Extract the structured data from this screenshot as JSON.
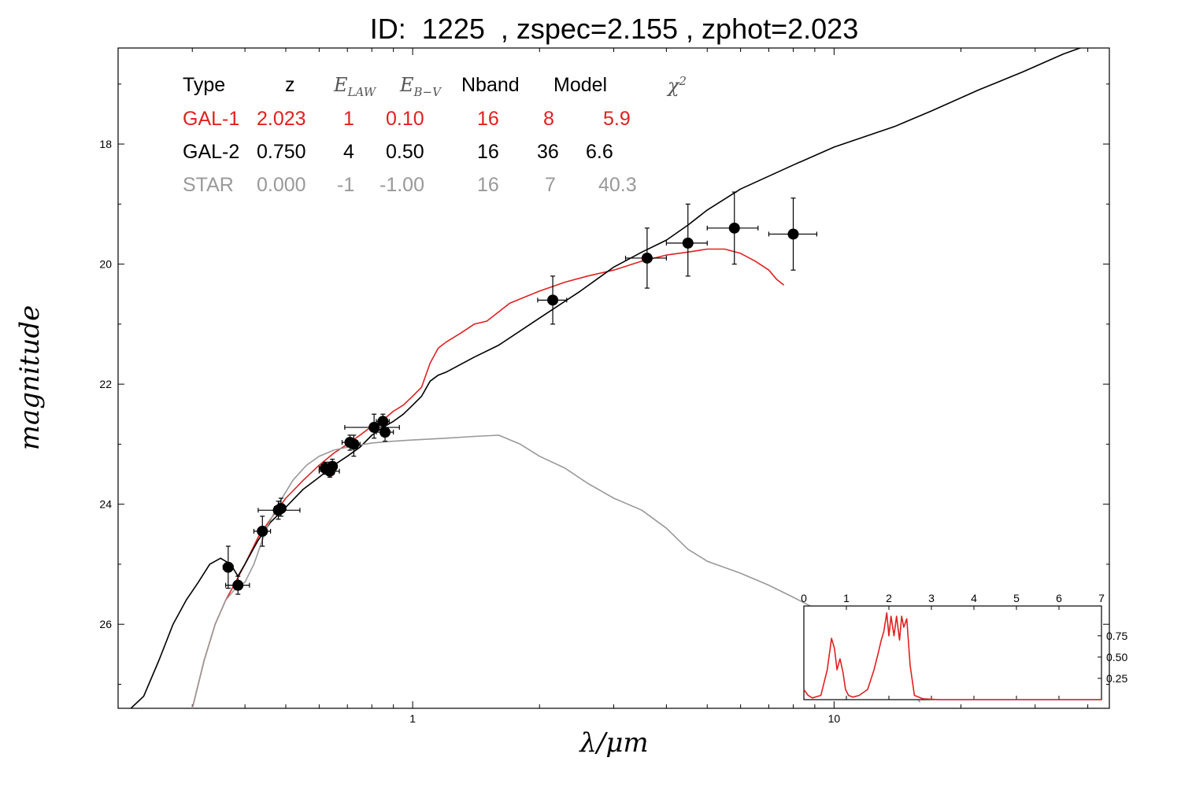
{
  "title": "ID:  1225  , zspec=2.155 , zphot=2.023",
  "chart_data": {
    "type": "scatter",
    "xlabel": "λ/μm",
    "ylabel": "magnitude",
    "x_scale": "log",
    "xlim": [
      0.2,
      45
    ],
    "ylim": [
      27.4,
      16.4
    ],
    "y_inverted": true,
    "x_ticks": [
      "1",
      "10"
    ],
    "y_ticks": [
      "18",
      "20",
      "22",
      "24",
      "26"
    ],
    "legend": {
      "headers": {
        "type": "Type",
        "z": "z",
        "elaw_base": "E",
        "elaw_sub": "LAW",
        "ebv_base": "E",
        "ebv_sub": "B−V",
        "nband": "Nband",
        "model": "Model",
        "chi_base": "χ",
        "chi_sup": "2"
      },
      "rows": [
        {
          "type": "GAL-1",
          "z": "2.023",
          "elaw": "1",
          "ebv": "0.10",
          "nband": "16",
          "model": "8",
          "chi2": "5.9",
          "color": "#e02020"
        },
        {
          "type": "GAL-2",
          "z": "0.750",
          "elaw": "4",
          "ebv": "0.50",
          "nband": "16",
          "model": "36",
          "chi2": "6.6",
          "color": "#000000"
        },
        {
          "type": "STAR",
          "z": "0.000",
          "elaw": "-1",
          "ebv": "-1.00",
          "nband": "16",
          "model": "7",
          "chi2": "40.3",
          "color": "#999999"
        }
      ]
    },
    "points": [
      {
        "x": 0.365,
        "y": 25.05,
        "xerr": [
          0.355,
          0.375
        ],
        "yerr": [
          24.7,
          25.4
        ]
      },
      {
        "x": 0.385,
        "y": 25.35,
        "xerr": [
          0.36,
          0.41
        ],
        "yerr": [
          25.2,
          25.5
        ]
      },
      {
        "x": 0.44,
        "y": 24.45,
        "xerr": [
          0.42,
          0.46
        ],
        "yerr": [
          24.2,
          24.7
        ]
      },
      {
        "x": 0.48,
        "y": 24.1,
        "xerr": [
          0.43,
          0.54
        ],
        "yerr": [
          23.95,
          24.25
        ]
      },
      {
        "x": 0.487,
        "y": 24.07,
        "xerr": [
          0.47,
          0.5
        ],
        "yerr": [
          23.9,
          24.2
        ]
      },
      {
        "x": 0.62,
        "y": 23.4,
        "xerr": [
          0.6,
          0.64
        ],
        "yerr": [
          23.3,
          23.5
        ]
      },
      {
        "x": 0.636,
        "y": 23.45,
        "xerr": [
          0.6,
          0.67
        ],
        "yerr": [
          23.3,
          23.55
        ]
      },
      {
        "x": 0.645,
        "y": 23.37,
        "xerr": [
          0.63,
          0.66
        ],
        "yerr": [
          23.25,
          23.5
        ]
      },
      {
        "x": 0.71,
        "y": 22.97,
        "xerr": [
          0.68,
          0.74
        ],
        "yerr": [
          22.85,
          23.1
        ]
      },
      {
        "x": 0.725,
        "y": 23.0,
        "xerr": [
          0.7,
          0.75
        ],
        "yerr": [
          22.85,
          23.2
        ]
      },
      {
        "x": 0.81,
        "y": 22.72,
        "xerr": [
          0.69,
          0.93
        ],
        "yerr": [
          22.5,
          22.9
        ]
      },
      {
        "x": 0.85,
        "y": 22.62,
        "xerr": [
          0.82,
          0.88
        ],
        "yerr": [
          22.5,
          22.75
        ]
      },
      {
        "x": 0.86,
        "y": 22.8,
        "xerr": [
          0.82,
          0.9
        ],
        "yerr": [
          22.65,
          22.95
        ]
      },
      {
        "x": 2.15,
        "y": 20.6,
        "xerr": [
          1.98,
          2.32
        ],
        "yerr": [
          20.2,
          21.0
        ]
      },
      {
        "x": 3.6,
        "y": 19.9,
        "xerr": [
          3.2,
          4.0
        ],
        "yerr": [
          19.4,
          20.4
        ]
      },
      {
        "x": 4.5,
        "y": 19.65,
        "xerr": [
          4.0,
          5.0
        ],
        "yerr": [
          19.0,
          20.2
        ]
      },
      {
        "x": 5.8,
        "y": 19.4,
        "xerr": [
          5.0,
          6.6
        ],
        "yerr": [
          18.8,
          20.0
        ]
      },
      {
        "x": 8.0,
        "y": 19.5,
        "xerr": [
          7.0,
          9.1
        ],
        "yerr": [
          18.9,
          20.1
        ]
      }
    ],
    "series": [
      {
        "color": "#e02020",
        "x": [
          0.3,
          0.32,
          0.34,
          0.36,
          0.38,
          0.4,
          0.43,
          0.46,
          0.5,
          0.55,
          0.6,
          0.65,
          0.7,
          0.75,
          0.8,
          0.85,
          0.9,
          0.95,
          1.0,
          1.05,
          1.1,
          1.15,
          1.2,
          1.3,
          1.4,
          1.5,
          1.7,
          2.0,
          2.3,
          2.6,
          3.0,
          3.5,
          4.0,
          4.5,
          5.0,
          5.5,
          6.0,
          6.5,
          7.0,
          7.3,
          7.6
        ],
        "y": [
          27.4,
          26.6,
          26.0,
          25.6,
          25.3,
          25.0,
          24.55,
          24.25,
          23.9,
          23.6,
          23.35,
          23.15,
          23.0,
          22.85,
          22.7,
          22.6,
          22.45,
          22.35,
          22.2,
          22.05,
          21.65,
          21.4,
          21.3,
          21.15,
          21.0,
          20.95,
          20.65,
          20.45,
          20.3,
          20.2,
          20.1,
          19.95,
          19.85,
          19.8,
          19.75,
          19.75,
          19.82,
          19.95,
          20.1,
          20.25,
          20.35
        ]
      },
      {
        "color": "#000000",
        "x": [
          0.2,
          0.23,
          0.25,
          0.27,
          0.29,
          0.31,
          0.33,
          0.35,
          0.37,
          0.385,
          0.4,
          0.43,
          0.46,
          0.5,
          0.55,
          0.6,
          0.65,
          0.7,
          0.75,
          0.8,
          0.85,
          0.9,
          0.95,
          1.0,
          1.05,
          1.1,
          1.15,
          1.2,
          1.4,
          1.6,
          2.0,
          2.5,
          3.0,
          3.5,
          4.0,
          4.5,
          5.0,
          6.0,
          8.0,
          10.0,
          14.0,
          17.0,
          22.0,
          28.0,
          35.0,
          42.0
        ],
        "y": [
          27.6,
          27.2,
          26.6,
          26.0,
          25.6,
          25.3,
          25.0,
          24.9,
          25.0,
          25.2,
          25.0,
          24.6,
          24.3,
          24.05,
          23.75,
          23.55,
          23.35,
          23.2,
          23.05,
          22.85,
          22.72,
          22.62,
          22.5,
          22.35,
          22.2,
          21.95,
          21.85,
          21.8,
          21.55,
          21.35,
          20.9,
          20.45,
          20.05,
          19.8,
          19.6,
          19.35,
          19.1,
          18.75,
          18.35,
          18.05,
          17.7,
          17.45,
          17.1,
          16.8,
          16.5,
          16.3
        ]
      },
      {
        "color": "#999999",
        "x": [
          0.3,
          0.32,
          0.34,
          0.36,
          0.38,
          0.4,
          0.42,
          0.45,
          0.48,
          0.52,
          0.56,
          0.6,
          0.65,
          0.7,
          0.8,
          0.9,
          1.0,
          1.2,
          1.4,
          1.6,
          1.8,
          2.0,
          2.3,
          2.6,
          3.0,
          3.5,
          4.0,
          4.5,
          5.0,
          6.0,
          7.0,
          8.0,
          10.0,
          13.0,
          16.0
        ],
        "y": [
          27.4,
          26.6,
          26.0,
          25.6,
          25.4,
          25.3,
          25.0,
          24.4,
          24.0,
          23.6,
          23.35,
          23.2,
          23.1,
          23.05,
          22.98,
          22.95,
          22.93,
          22.9,
          22.87,
          22.85,
          23.0,
          23.2,
          23.4,
          23.65,
          23.9,
          24.1,
          24.4,
          24.75,
          24.95,
          25.15,
          25.35,
          25.55,
          25.9,
          26.5,
          27.3
        ]
      }
    ],
    "inset": {
      "x_ticks": [
        "0",
        "1",
        "2",
        "3",
        "4",
        "5",
        "6",
        "7"
      ],
      "y_ticks": [
        "0.25",
        "0.50",
        "0.75"
      ],
      "xlim": [
        0,
        7
      ],
      "ylim": [
        0,
        1.1
      ],
      "color": "#e02020",
      "x": [
        0.0,
        0.1,
        0.2,
        0.4,
        0.55,
        0.65,
        0.72,
        0.78,
        0.85,
        0.92,
        0.98,
        1.05,
        1.15,
        1.3,
        1.5,
        1.65,
        1.75,
        1.82,
        1.88,
        1.95,
        2.0,
        2.05,
        2.12,
        2.18,
        2.25,
        2.3,
        2.35,
        2.42,
        2.5,
        2.6,
        2.8,
        3.2,
        4.0,
        5.0,
        6.0,
        7.0
      ],
      "y": [
        0.12,
        0.05,
        0.02,
        0.05,
        0.35,
        0.72,
        0.6,
        0.35,
        0.48,
        0.32,
        0.12,
        0.05,
        0.03,
        0.05,
        0.12,
        0.35,
        0.55,
        0.7,
        0.8,
        1.02,
        0.75,
        0.98,
        0.75,
        0.98,
        0.7,
        0.98,
        0.85,
        0.95,
        0.4,
        0.05,
        0.01,
        0.0,
        0.0,
        0.0,
        0.0,
        0.0
      ]
    }
  }
}
